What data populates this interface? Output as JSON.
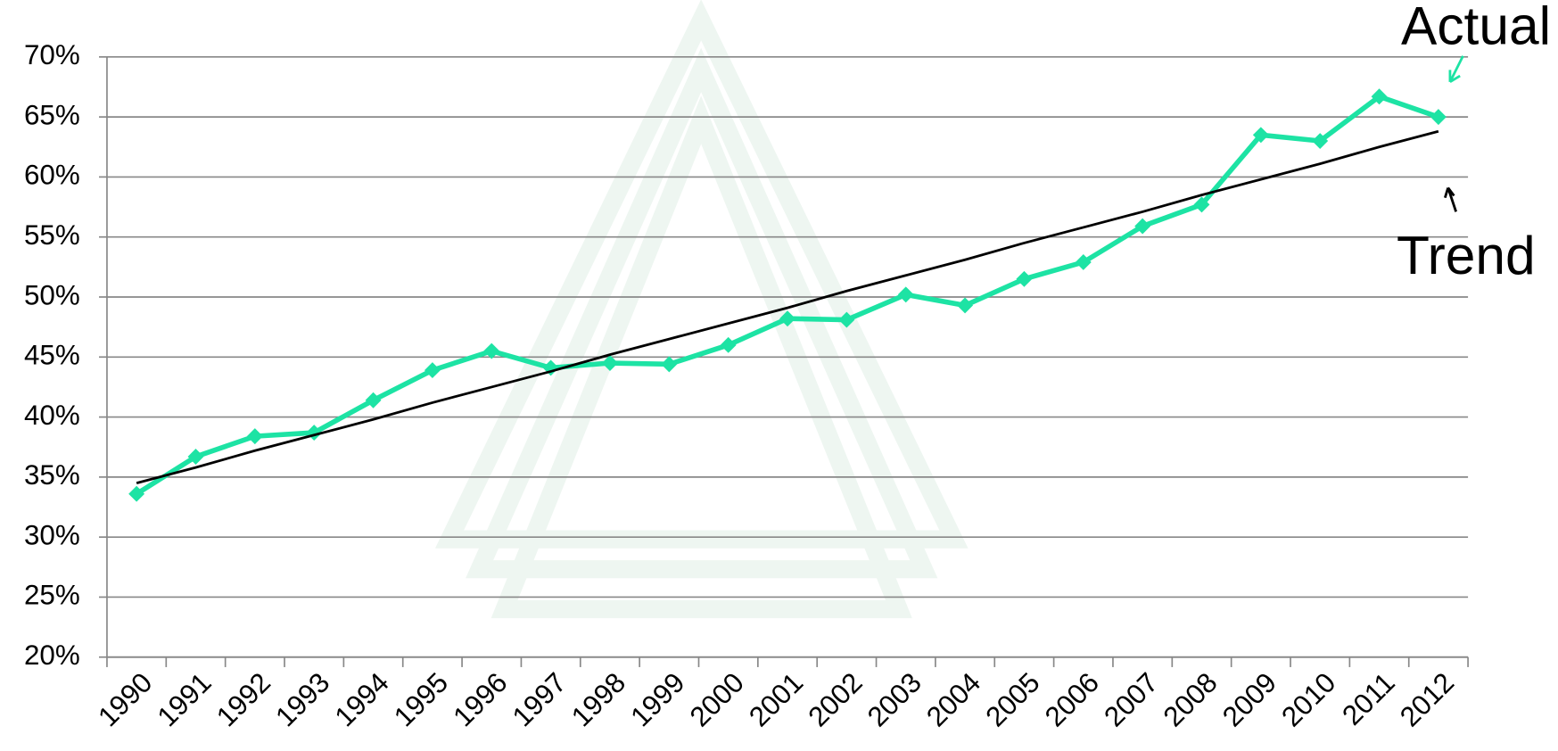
{
  "chart_data": {
    "type": "line",
    "categories": [
      "1990",
      "1991",
      "1992",
      "1993",
      "1994",
      "1995",
      "1996",
      "1997",
      "1998",
      "1999",
      "2000",
      "2001",
      "2002",
      "2003",
      "2004",
      "2005",
      "2006",
      "2007",
      "2008",
      "2009",
      "2010",
      "2011",
      "2012"
    ],
    "series": [
      {
        "name": "Actual",
        "color": "#1de3a4",
        "marker": "diamond",
        "values": [
          33.6,
          36.7,
          38.4,
          38.7,
          41.4,
          43.9,
          45.5,
          44.1,
          44.5,
          44.4,
          46.0,
          48.2,
          48.1,
          50.2,
          49.3,
          51.5,
          52.9,
          55.9,
          57.7,
          63.5,
          63.0,
          66.7,
          65.0
        ]
      },
      {
        "name": "Trend",
        "color": "#000000",
        "values": [
          34.5,
          35.8,
          37.2,
          38.5,
          39.8,
          41.2,
          42.5,
          43.8,
          45.2,
          46.5,
          47.8,
          49.1,
          50.5,
          51.8,
          53.1,
          54.5,
          55.8,
          57.1,
          58.5,
          59.8,
          61.1,
          62.5,
          63.8
        ]
      }
    ],
    "ylim": [
      20,
      70
    ],
    "yticks": [
      {
        "value": 20,
        "label": "20%"
      },
      {
        "value": 25,
        "label": "25%"
      },
      {
        "value": 30,
        "label": "30%"
      },
      {
        "value": 35,
        "label": "35%"
      },
      {
        "value": 40,
        "label": "40%"
      },
      {
        "value": 45,
        "label": "45%"
      },
      {
        "value": 50,
        "label": "50%"
      },
      {
        "value": 55,
        "label": "55%"
      },
      {
        "value": 60,
        "label": "60%"
      },
      {
        "value": 65,
        "label": "65%"
      },
      {
        "value": 70,
        "label": "70%"
      }
    ],
    "grid": true
  }
}
